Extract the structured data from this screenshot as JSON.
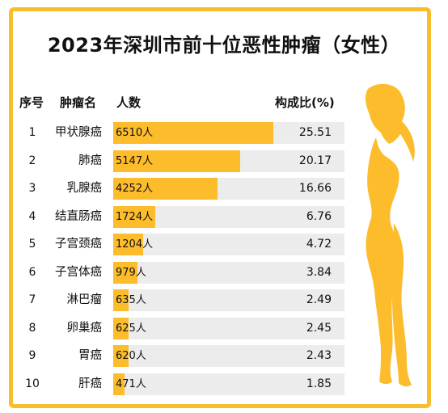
{
  "title": "2023年深圳市前十位恶性肿瘤（女性）",
  "headers": {
    "rank": "序号",
    "name": "肿瘤名",
    "count": "人数",
    "ratio": "构成比(%)"
  },
  "unit": "人",
  "colors": {
    "border": "#f7bd2c",
    "bar": "#fcbc2c",
    "track": "#ececec",
    "silhouette": "#fcbc2c"
  },
  "chart_data": {
    "type": "bar",
    "categories": [
      "甲状腺癌",
      "肺癌",
      "乳腺癌",
      "结直肠癌",
      "子宫颈癌",
      "子宫体癌",
      "淋巴瘤",
      "卵巢癌",
      "胃癌",
      "肝癌"
    ],
    "ranks": [
      "1",
      "2",
      "3",
      "4",
      "5",
      "6",
      "7",
      "8",
      "9",
      "10"
    ],
    "values": [
      6510,
      5147,
      4252,
      1724,
      1204,
      979,
      635,
      625,
      620,
      471
    ],
    "value_labels": [
      "6510人",
      "5147人",
      "4252人",
      "1724人",
      "1204人",
      "979人",
      "635人",
      "625人",
      "620人",
      "471人"
    ],
    "ratios": [
      "25.51",
      "20.17",
      "16.66",
      "6.76",
      "4.72",
      "3.84",
      "2.49",
      "2.45",
      "2.43",
      "1.85"
    ],
    "xlim": [
      0,
      9400
    ]
  }
}
